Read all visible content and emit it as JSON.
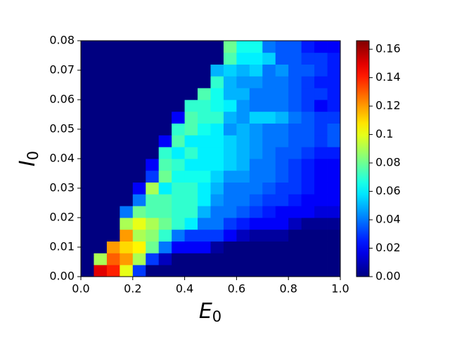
{
  "chart_data": {
    "type": "heatmap",
    "colormap": "jet",
    "xlabel": "E",
    "xlabel_sub": "0",
    "ylabel": "I",
    "ylabel_sub": "0",
    "xedges": [
      0,
      0.05,
      0.1,
      0.15,
      0.2,
      0.25,
      0.3,
      0.35,
      0.4,
      0.45,
      0.5,
      0.55,
      0.6,
      0.65,
      0.7,
      0.75,
      0.8,
      0.85,
      0.9,
      0.95,
      1
    ],
    "yedges": [
      0,
      0.004,
      0.008,
      0.012,
      0.016,
      0.02,
      0.024,
      0.028,
      0.032,
      0.036,
      0.04,
      0.044,
      0.048,
      0.052,
      0.056,
      0.06,
      0.064,
      0.068,
      0.072,
      0.076,
      0.08
    ],
    "z": [
      [
        0,
        0.15,
        0.14,
        0.1,
        0.03,
        0,
        0,
        0,
        0,
        0,
        0,
        0,
        0,
        0,
        0,
        0,
        0,
        0,
        0,
        0
      ],
      [
        0,
        0.09,
        0.13,
        0.12,
        0.09,
        0.03,
        0.01,
        0,
        0,
        0,
        0,
        0,
        0,
        0,
        0,
        0,
        0,
        0,
        0,
        0
      ],
      [
        0,
        0,
        0.12,
        0.11,
        0.105,
        0.08,
        0.04,
        0.02,
        0.02,
        0.02,
        0.005,
        0,
        0,
        0,
        0,
        0,
        0,
        0,
        0,
        0
      ],
      [
        0,
        0,
        0,
        0.12,
        0.09,
        0.085,
        0.07,
        0.04,
        0.03,
        0.03,
        0.03,
        0.02,
        0.01,
        0.005,
        0.005,
        0.005,
        0,
        0,
        0,
        0
      ],
      [
        0,
        0,
        0,
        0.09,
        0.1,
        0.09,
        0.08,
        0.07,
        0.06,
        0.04,
        0.04,
        0.03,
        0.025,
        0.02,
        0.02,
        0.02,
        0.01,
        0.003,
        0.003,
        0.003
      ],
      [
        0,
        0,
        0,
        0.04,
        0.08,
        0.075,
        0.075,
        0.07,
        0.07,
        0.05,
        0.04,
        0.04,
        0.035,
        0.03,
        0.025,
        0.02,
        0.02,
        0.02,
        0.015,
        0.015
      ],
      [
        0,
        0,
        0,
        0,
        0.04,
        0.075,
        0.075,
        0.07,
        0.07,
        0.06,
        0.045,
        0.04,
        0.04,
        0.035,
        0.03,
        0.03,
        0.025,
        0.02,
        0.02,
        0.02
      ],
      [
        0,
        0,
        0,
        0,
        0.02,
        0.09,
        0.06,
        0.07,
        0.07,
        0.06,
        0.05,
        0.04,
        0.04,
        0.04,
        0.035,
        0.03,
        0.03,
        0.025,
        0.02,
        0.02
      ],
      [
        0,
        0,
        0,
        0,
        0,
        0.03,
        0.08,
        0.065,
        0.065,
        0.065,
        0.055,
        0.045,
        0.045,
        0.04,
        0.04,
        0.035,
        0.03,
        0.025,
        0.02,
        0.02
      ],
      [
        0,
        0,
        0,
        0,
        0,
        0.02,
        0.075,
        0.07,
        0.06,
        0.06,
        0.06,
        0.055,
        0.05,
        0.04,
        0.04,
        0.035,
        0.03,
        0.025,
        0.02,
        0.02
      ],
      [
        0,
        0,
        0,
        0,
        0,
        0,
        0.07,
        0.06,
        0.07,
        0.06,
        0.06,
        0.055,
        0.05,
        0.045,
        0.04,
        0.035,
        0.035,
        0.03,
        0.025,
        0.025
      ],
      [
        0,
        0,
        0,
        0,
        0,
        0,
        0.02,
        0.075,
        0.06,
        0.06,
        0.06,
        0.055,
        0.05,
        0.045,
        0.04,
        0.04,
        0.035,
        0.035,
        0.03,
        0.035
      ],
      [
        0,
        0,
        0,
        0,
        0,
        0,
        0,
        0.07,
        0.075,
        0.065,
        0.06,
        0.045,
        0.05,
        0.045,
        0.04,
        0.04,
        0.035,
        0.035,
        0.03,
        0.035
      ],
      [
        0,
        0,
        0,
        0,
        0,
        0,
        0,
        0.02,
        0.075,
        0.07,
        0.07,
        0.05,
        0.045,
        0.055,
        0.055,
        0.05,
        0.04,
        0.035,
        0.03,
        0.03
      ],
      [
        0,
        0,
        0,
        0,
        0,
        0,
        0,
        0,
        0.07,
        0.07,
        0.065,
        0.06,
        0.045,
        0.04,
        0.04,
        0.04,
        0.035,
        0.03,
        0.02,
        0.025
      ],
      [
        0,
        0,
        0,
        0,
        0,
        0,
        0,
        0,
        0,
        0.075,
        0.065,
        0.05,
        0.05,
        0.04,
        0.04,
        0.04,
        0.035,
        0.03,
        0.03,
        0.025
      ],
      [
        0,
        0,
        0,
        0,
        0,
        0,
        0,
        0,
        0,
        0,
        0.07,
        0.05,
        0.045,
        0.045,
        0.04,
        0.04,
        0.035,
        0.03,
        0.025,
        0.025
      ],
      [
        0,
        0,
        0,
        0,
        0,
        0,
        0,
        0,
        0,
        0,
        0.05,
        0.055,
        0.05,
        0.055,
        0.04,
        0.045,
        0.035,
        0.035,
        0.03,
        0.025
      ],
      [
        0,
        0,
        0,
        0,
        0,
        0,
        0,
        0,
        0,
        0,
        0,
        0.075,
        0.06,
        0.06,
        0.055,
        0.035,
        0.035,
        0.03,
        0.03,
        0.025
      ],
      [
        0,
        0,
        0,
        0,
        0,
        0,
        0,
        0,
        0,
        0,
        0,
        0.08,
        0.065,
        0.065,
        0.04,
        0.035,
        0.035,
        0.025,
        0.02,
        0.02
      ]
    ],
    "xlim": [
      0,
      1
    ],
    "ylim": [
      0,
      0.08
    ],
    "xticks": [
      {
        "value": 0,
        "label": "0.0"
      },
      0.2,
      0.4,
      0.6,
      0.8,
      {
        "value": 1,
        "label": "1.0"
      }
    ],
    "yticks": [
      {
        "value": 0,
        "label": "0.00"
      },
      0.01,
      0.02,
      0.03,
      0.04,
      0.05,
      0.06,
      0.07,
      0.08
    ],
    "clim": [
      0,
      0.166
    ],
    "cticks": [
      {
        "value": 0,
        "label": "0.00"
      },
      0.02,
      0.04,
      0.06,
      0.08,
      0.1,
      0.12,
      0.14,
      0.16
    ]
  }
}
